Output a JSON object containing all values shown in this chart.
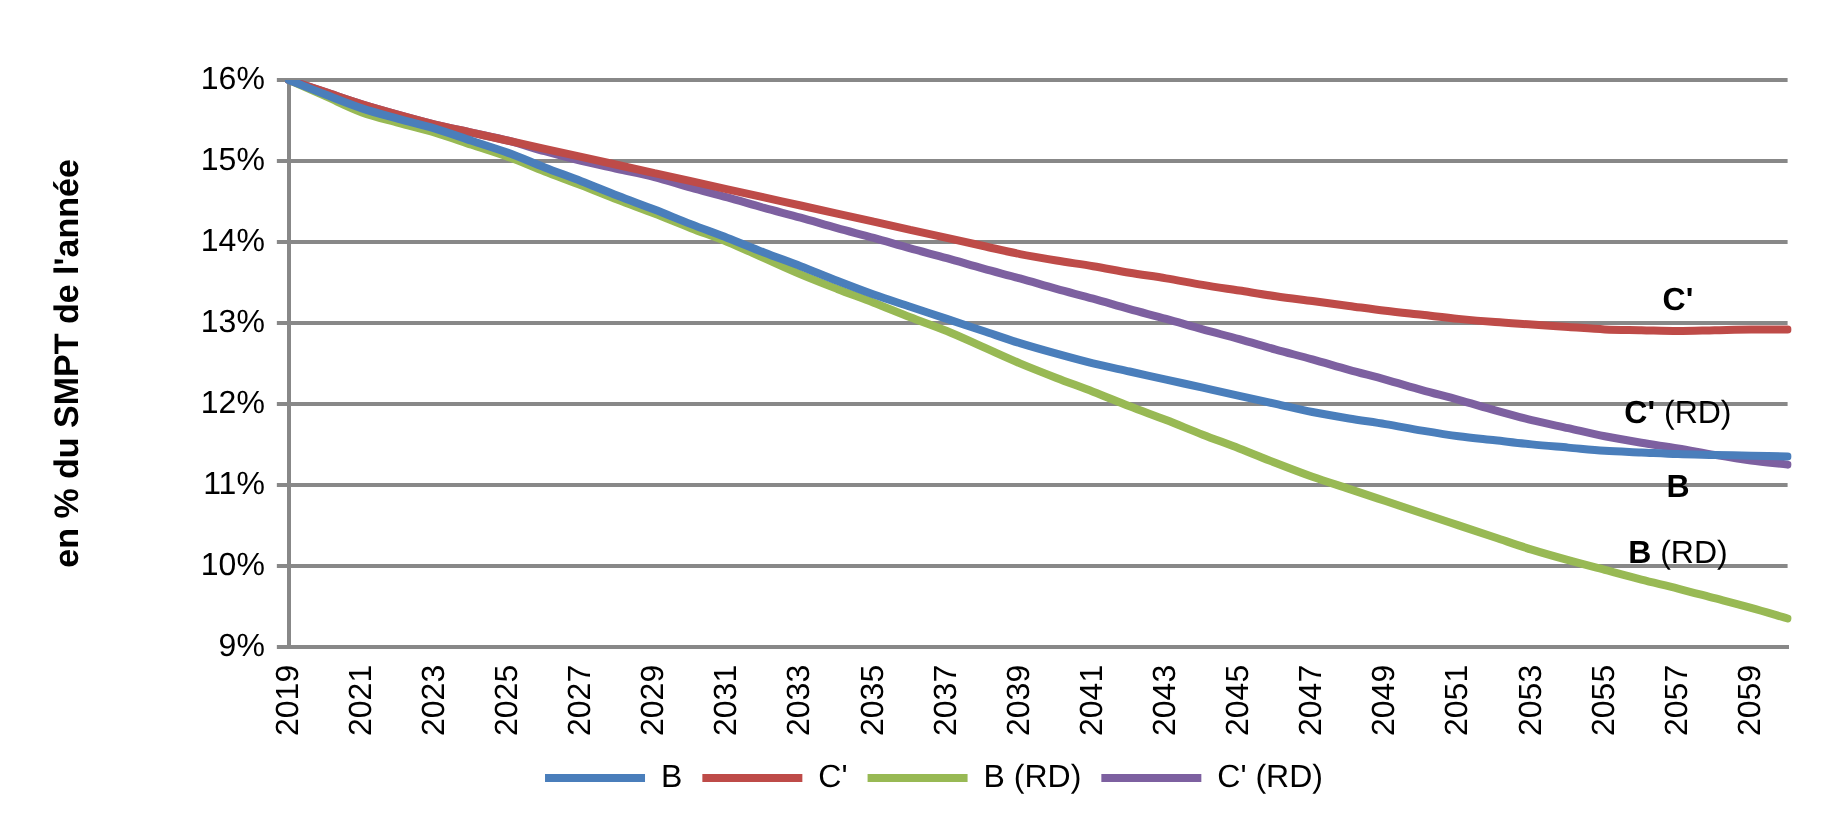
{
  "chart_data": {
    "type": "line",
    "ylabel": "en % du SMPT de l'année",
    "categories": [
      "2019",
      null,
      "2021",
      null,
      "2023",
      null,
      "2025",
      null,
      "2027",
      null,
      "2029",
      null,
      "2031",
      null,
      "2033",
      null,
      "2035",
      null,
      "2037",
      null,
      "2039",
      null,
      "2041",
      null,
      "2043",
      null,
      "2045",
      null,
      "2047",
      null,
      "2049",
      null,
      "2051",
      null,
      "2053",
      null,
      "2055",
      null,
      "2057",
      null,
      "2059",
      null
    ],
    "ylim": [
      9,
      16
    ],
    "yticks": [
      {
        "value": 9,
        "label": "9%"
      },
      {
        "value": 10,
        "label": "10%"
      },
      {
        "value": 11,
        "label": "11%"
      },
      {
        "value": 12,
        "label": "12%"
      },
      {
        "value": 13,
        "label": "13%"
      },
      {
        "value": 14,
        "label": "14%"
      },
      {
        "value": 15,
        "label": "15%"
      },
      {
        "value": 16,
        "label": "16%"
      }
    ],
    "grid": "y",
    "legend": "bottom",
    "marker": "none",
    "line_style": "solid",
    "series": [
      {
        "name": "B",
        "color": "#4a7ebb",
        "values": [
          16.0,
          15.82,
          15.65,
          15.52,
          15.4,
          15.25,
          15.1,
          14.92,
          14.75,
          14.57,
          14.4,
          14.22,
          14.05,
          13.87,
          13.7,
          13.52,
          13.35,
          13.2,
          13.05,
          12.9,
          12.75,
          12.62,
          12.5,
          12.4,
          12.3,
          12.2,
          12.1,
          12.0,
          11.9,
          11.82,
          11.75,
          11.67,
          11.6,
          11.55,
          11.5,
          11.46,
          11.42,
          11.4,
          11.38,
          11.37,
          11.36,
          11.35
        ]
      },
      {
        "name": "C'",
        "color": "#be4b48",
        "values": [
          16.0,
          15.85,
          15.7,
          15.57,
          15.45,
          15.35,
          15.25,
          15.15,
          15.05,
          14.95,
          14.85,
          14.75,
          14.65,
          14.55,
          14.45,
          14.35,
          14.25,
          14.15,
          14.05,
          13.95,
          13.85,
          13.77,
          13.7,
          13.62,
          13.55,
          13.47,
          13.4,
          13.33,
          13.27,
          13.21,
          13.15,
          13.1,
          13.05,
          13.01,
          12.98,
          12.95,
          12.92,
          12.91,
          12.9,
          12.91,
          12.92,
          12.92
        ]
      },
      {
        "name": "B (RD)",
        "color": "#98b954",
        "values": [
          16.0,
          15.8,
          15.6,
          15.47,
          15.35,
          15.2,
          15.05,
          14.87,
          14.7,
          14.52,
          14.35,
          14.17,
          14.0,
          13.8,
          13.6,
          13.42,
          13.25,
          13.07,
          12.9,
          12.7,
          12.5,
          12.32,
          12.15,
          11.97,
          11.8,
          11.62,
          11.45,
          11.27,
          11.1,
          10.95,
          10.8,
          10.65,
          10.5,
          10.35,
          10.2,
          10.07,
          9.95,
          9.83,
          9.72,
          9.6,
          9.48,
          9.35
        ]
      },
      {
        "name": "C' (RD)",
        "color": "#7d60a0",
        "values": [
          16.0,
          15.85,
          15.7,
          15.57,
          15.45,
          15.35,
          15.25,
          15.12,
          15.0,
          14.9,
          14.8,
          14.67,
          14.55,
          14.42,
          14.3,
          14.17,
          14.05,
          13.92,
          13.8,
          13.67,
          13.55,
          13.42,
          13.3,
          13.17,
          13.05,
          12.92,
          12.8,
          12.67,
          12.55,
          12.42,
          12.3,
          12.17,
          12.05,
          11.92,
          11.8,
          11.7,
          11.6,
          11.52,
          11.45,
          11.37,
          11.3,
          11.25
        ]
      }
    ]
  }
}
